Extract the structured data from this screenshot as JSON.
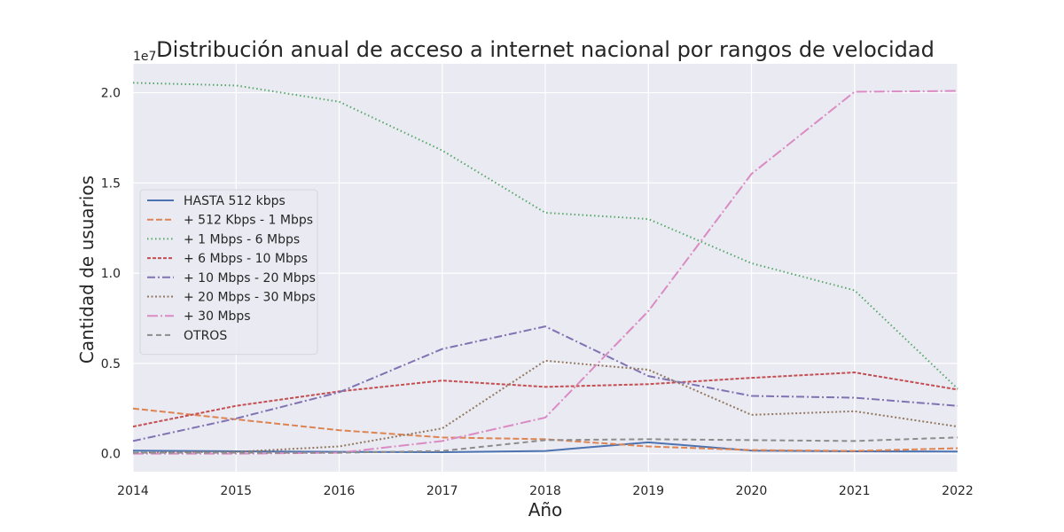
{
  "chart_data": {
    "type": "line",
    "title": "Distribución anual de acceso a internet nacional por rangos de velocidad",
    "xlabel": "Año",
    "ylabel": "Cantidad de usuarios",
    "y_offset_label": "1e7",
    "y_scale_factor": 10000000,
    "x": [
      2014,
      2015,
      2016,
      2017,
      2018,
      2019,
      2020,
      2021,
      2022
    ],
    "x_tick_labels": [
      "2014",
      "2015",
      "2016",
      "2017",
      "2018",
      "2019",
      "2020",
      "2021",
      "2022"
    ],
    "y_ticks": [
      0,
      5000000,
      10000000,
      15000000,
      20000000
    ],
    "y_tick_labels": [
      "0.0",
      "0.5",
      "1.0",
      "1.5",
      "2.0"
    ],
    "xlim": [
      2014,
      2022
    ],
    "ylim": [
      -1000000,
      21600000
    ],
    "grid": true,
    "legend_position": "center-left",
    "background": "#eaeaf2",
    "series": [
      {
        "name": "HASTA 512 kbps",
        "color": "#4c72b0",
        "dash": "solid",
        "values": [
          170000,
          130000,
          100000,
          80000,
          150000,
          630000,
          170000,
          130000,
          120000
        ]
      },
      {
        "name": "+ 512 Kbps - 1 Mbps",
        "color": "#dd8452",
        "dash": "dashed",
        "values": [
          2500000,
          1900000,
          1300000,
          900000,
          800000,
          400000,
          200000,
          150000,
          300000
        ]
      },
      {
        "name": "+ 1 Mbps - 6 Mbps",
        "color": "#55a868",
        "dash": "dotted",
        "values": [
          20550000,
          20400000,
          19500000,
          16800000,
          13350000,
          13000000,
          10550000,
          9050000,
          3600000
        ]
      },
      {
        "name": "+ 6 Mbps - 10 Mbps",
        "color": "#c44e52",
        "dash": "densedash",
        "values": [
          1500000,
          2650000,
          3450000,
          4050000,
          3700000,
          3850000,
          4200000,
          4500000,
          3550000
        ]
      },
      {
        "name": "+ 10 Mbps - 20 Mbps",
        "color": "#8172b3",
        "dash": "dashdot",
        "values": [
          700000,
          1950000,
          3400000,
          5800000,
          7050000,
          4300000,
          3200000,
          3100000,
          2650000
        ]
      },
      {
        "name": "+ 20 Mbps - 30 Mbps",
        "color": "#937860",
        "dash": "densedot",
        "values": [
          50000,
          100000,
          400000,
          1400000,
          5150000,
          4650000,
          2150000,
          2350000,
          1500000
        ]
      },
      {
        "name": "+ 30 Mbps",
        "color": "#da8bc3",
        "dash": "longdashdot",
        "values": [
          0,
          0,
          50000,
          700000,
          2000000,
          7900000,
          15500000,
          20050000,
          20100000
        ]
      },
      {
        "name": "OTROS",
        "color": "#8c8c8c",
        "dash": "loosedash",
        "values": [
          50000,
          50000,
          50000,
          150000,
          750000,
          800000,
          750000,
          700000,
          900000
        ]
      }
    ]
  }
}
